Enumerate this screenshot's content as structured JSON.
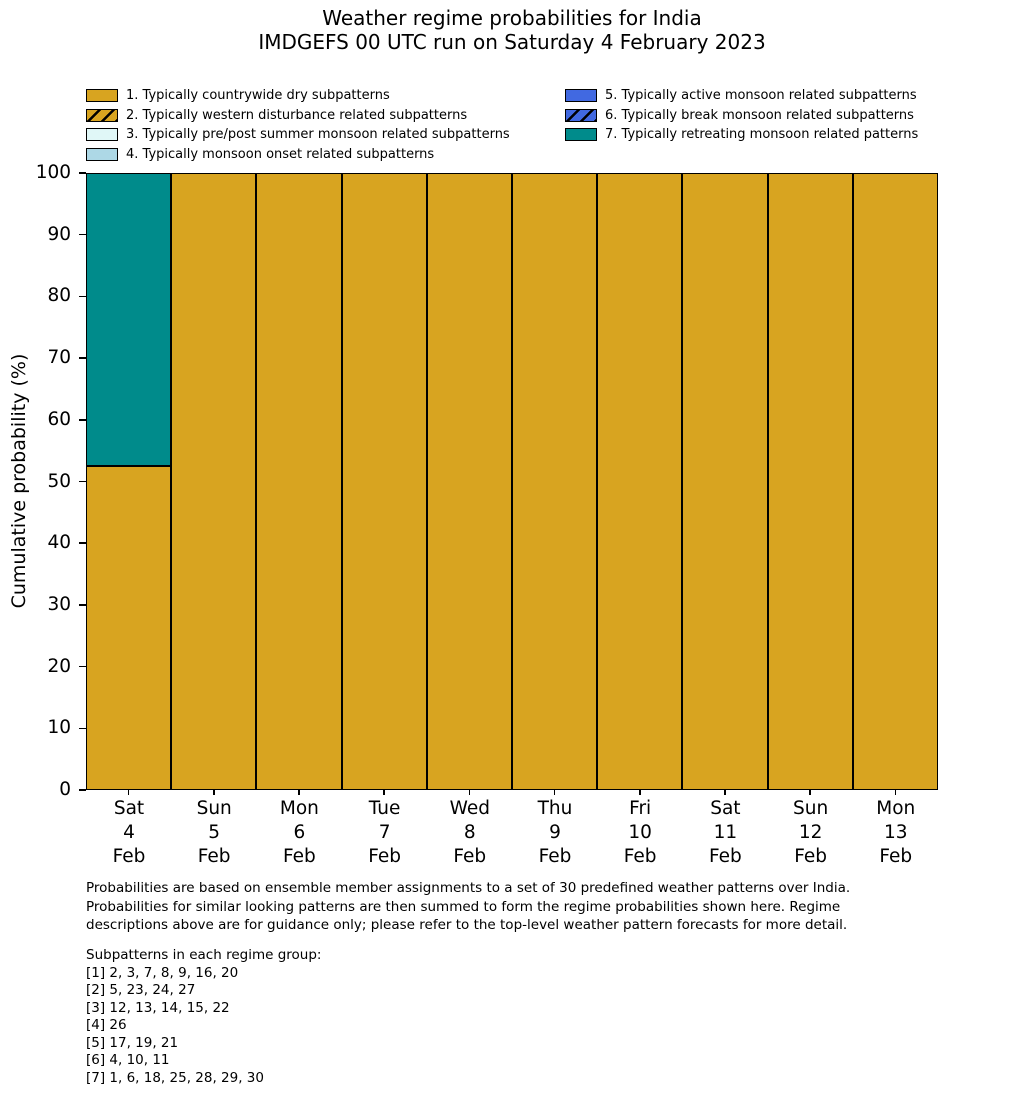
{
  "chart_data": {
    "type": "bar",
    "stacked": true,
    "title": "Weather regime probabilities for India",
    "subtitle": "IMDGEFS 00 UTC run on Saturday 4 February 2023",
    "ylabel": "Cumulative probability (%)",
    "ylim": [
      0,
      100
    ],
    "yticks": [
      0,
      10,
      20,
      30,
      40,
      50,
      60,
      70,
      80,
      90,
      100
    ],
    "grid": false,
    "legend_position": "top, two columns, no frame",
    "bar_edge_color": "#000000",
    "categories": [
      {
        "day": "Sat",
        "date": "4",
        "month": "Feb"
      },
      {
        "day": "Sun",
        "date": "5",
        "month": "Feb"
      },
      {
        "day": "Mon",
        "date": "6",
        "month": "Feb"
      },
      {
        "day": "Tue",
        "date": "7",
        "month": "Feb"
      },
      {
        "day": "Wed",
        "date": "8",
        "month": "Feb"
      },
      {
        "day": "Thu",
        "date": "9",
        "month": "Feb"
      },
      {
        "day": "Fri",
        "date": "10",
        "month": "Feb"
      },
      {
        "day": "Sat",
        "date": "11",
        "month": "Feb"
      },
      {
        "day": "Sun",
        "date": "12",
        "month": "Feb"
      },
      {
        "day": "Mon",
        "date": "13",
        "month": "Feb"
      }
    ],
    "series": [
      {
        "name": "1. Typically countrywide dry subpatterns",
        "color": "#d8a420",
        "hatch": false,
        "values": [
          52.5,
          100,
          100,
          100,
          100,
          100,
          100,
          100,
          100,
          100
        ]
      },
      {
        "name": "2. Typically western disturbance related subpatterns",
        "color": "#d8a420",
        "hatch": true,
        "values": [
          0,
          0,
          0,
          0,
          0,
          0,
          0,
          0,
          0,
          0
        ]
      },
      {
        "name": "3. Typically pre/post summer monsoon related subpatterns",
        "color": "#e0f7f7",
        "hatch": false,
        "values": [
          0,
          0,
          0,
          0,
          0,
          0,
          0,
          0,
          0,
          0
        ]
      },
      {
        "name": "4. Typically monsoon onset related subpatterns",
        "color": "#add8e6",
        "hatch": false,
        "values": [
          0,
          0,
          0,
          0,
          0,
          0,
          0,
          0,
          0,
          0
        ]
      },
      {
        "name": "5. Typically active monsoon related subpatterns",
        "color": "#4169e1",
        "hatch": false,
        "values": [
          0,
          0,
          0,
          0,
          0,
          0,
          0,
          0,
          0,
          0
        ]
      },
      {
        "name": "6. Typically break monsoon related subpatterns",
        "color": "#4169e1",
        "hatch": true,
        "values": [
          0,
          0,
          0,
          0,
          0,
          0,
          0,
          0,
          0,
          0
        ]
      },
      {
        "name": "7. Typically retreating monsoon related patterns",
        "color": "#008b8b",
        "hatch": false,
        "values": [
          47.5,
          0,
          0,
          0,
          0,
          0,
          0,
          0,
          0,
          0
        ]
      }
    ]
  },
  "footer": {
    "lines": [
      "Probabilities are based on ensemble member assignments to a set of 30 predefined weather patterns over India.",
      "Probabilities for similar looking patterns are then summed to form the regime probabilities shown here. Regime",
      "descriptions above are for guidance only; please refer to the top-level weather pattern forecasts for more detail."
    ]
  },
  "subpatterns": {
    "heading": "Subpatterns in each regime group:",
    "lines": [
      "[1] 2, 3, 7, 8, 9, 16, 20",
      "[2] 5, 23, 24, 27",
      "[3] 12, 13, 14, 15, 22",
      "[4] 26",
      "[5] 17, 19, 21",
      "[6] 4, 10, 11",
      "[7] 1, 6, 18, 25, 28, 29, 30"
    ]
  }
}
